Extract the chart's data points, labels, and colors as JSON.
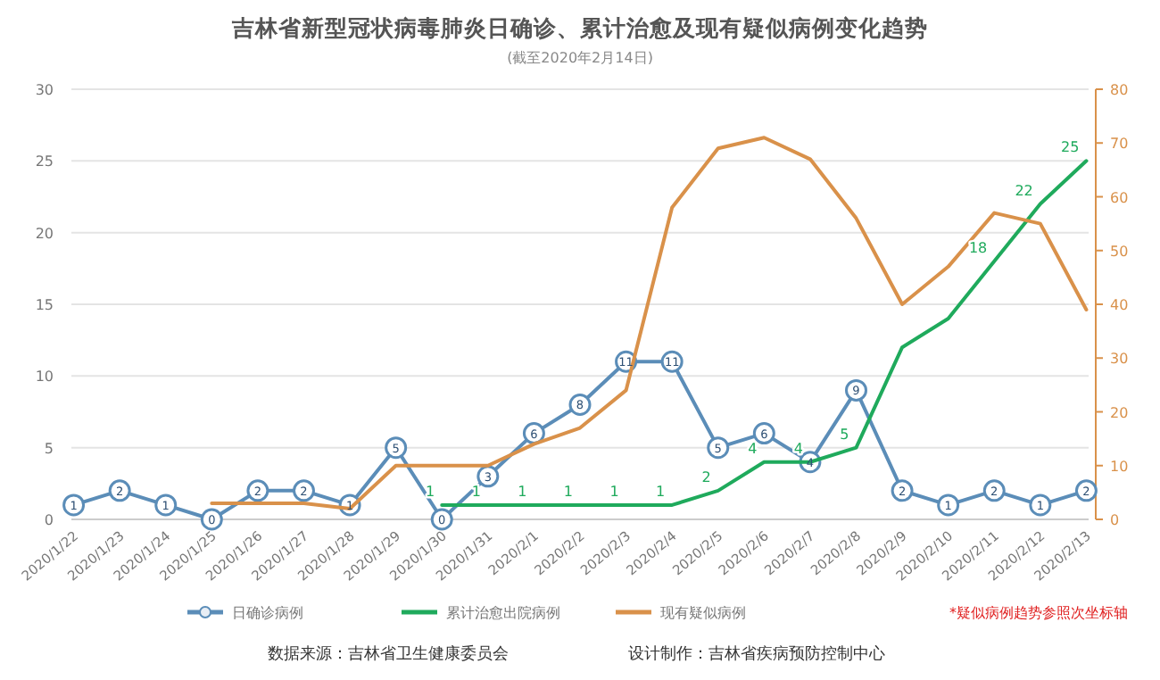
{
  "chart_data": {
    "type": "line",
    "title": "吉林省新型冠状病毒肺炎日确诊、累计治愈及现有疑似病例变化趋势",
    "subtitle": "(截至2020年2月14日)",
    "categories": [
      "2020/1/22",
      "2020/1/23",
      "2020/1/24",
      "2020/1/25",
      "2020/1/26",
      "2020/1/27",
      "2020/1/28",
      "2020/1/29",
      "2020/1/30",
      "2020/1/31",
      "2020/2/1",
      "2020/2/2",
      "2020/2/3",
      "2020/2/4",
      "2020/2/5",
      "2020/2/6",
      "2020/2/7",
      "2020/2/8",
      "2020/2/9",
      "2020/2/10",
      "2020/2/11",
      "2020/2/12",
      "2020/2/13"
    ],
    "series": [
      {
        "name": "日确诊病例",
        "color": "#5b8db8",
        "marker": "circle",
        "values": [
          1,
          2,
          1,
          0,
          2,
          2,
          1,
          5,
          0,
          3,
          6,
          8,
          11,
          11,
          5,
          6,
          4,
          9,
          2,
          1,
          2,
          1,
          2
        ],
        "value_labels": [
          "1",
          "2",
          "1",
          "0",
          "2",
          "2",
          "1",
          "5",
          "0",
          "3",
          "6",
          "8",
          "11",
          "11",
          "5",
          "6",
          "4",
          "9",
          "2",
          "1",
          "2",
          "1",
          "2"
        ]
      },
      {
        "name": "累计治愈出院病例",
        "color": "#1faa5c",
        "marker": "none",
        "values": [
          null,
          null,
          null,
          null,
          null,
          null,
          null,
          null,
          1,
          1,
          1,
          1,
          1,
          1,
          2,
          4,
          4,
          5,
          12,
          14,
          18,
          22,
          25
        ],
        "value_labels": [
          null,
          null,
          null,
          null,
          null,
          null,
          null,
          null,
          "1",
          "1",
          "1",
          "1",
          "1",
          "1",
          "2",
          "4",
          "4",
          "5",
          null,
          null,
          "18",
          "22",
          "25"
        ]
      },
      {
        "name": "现有疑似病例",
        "color": "#d9914a",
        "marker": "none",
        "axis": "y2",
        "values": [
          null,
          null,
          null,
          3,
          3,
          3,
          2,
          10,
          10,
          10,
          14,
          17,
          24,
          58,
          69,
          71,
          67,
          56,
          40,
          47,
          57,
          55,
          39
        ]
      }
    ],
    "ylim": [
      0,
      30
    ],
    "yticks": [
      0,
      5,
      10,
      15,
      20,
      25,
      30
    ],
    "y2lim": [
      0,
      80
    ],
    "y2ticks": [
      0,
      10,
      20,
      30,
      40,
      50,
      60,
      70,
      80
    ],
    "grid": "y",
    "legend": "bottom",
    "annotations": [
      "*疑似病例趋势参照次坐标轴",
      "数据来源：吉林省卫生健康委员会",
      "设计制作：吉林省疾病预防控制中心"
    ]
  }
}
